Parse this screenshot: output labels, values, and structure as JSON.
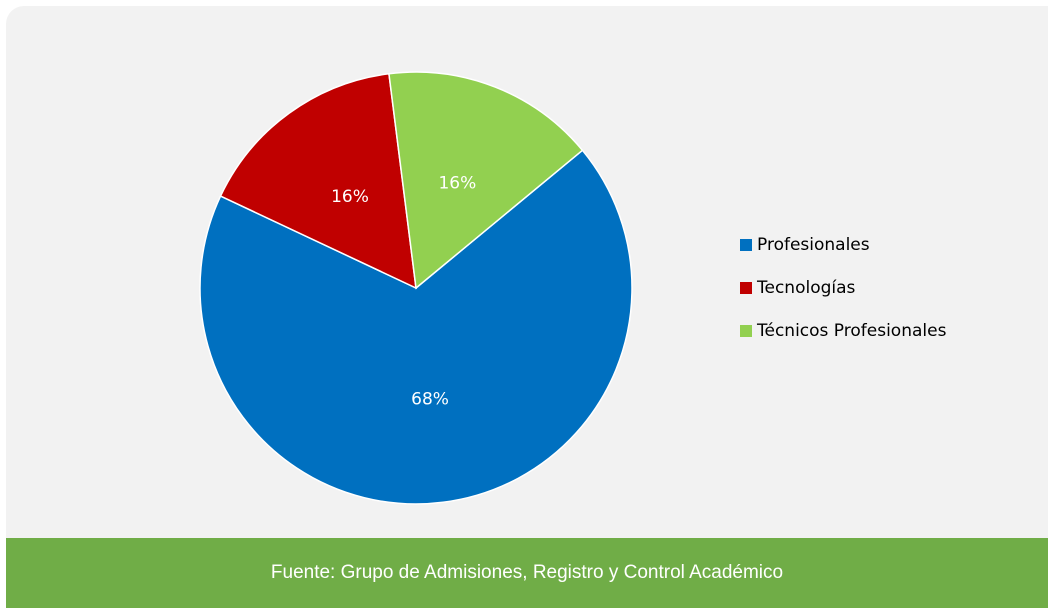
{
  "chart_data": {
    "type": "pie",
    "categories": [
      "Profesionales",
      "Tecnologías",
      "Técnicos Profesionales"
    ],
    "values": [
      68,
      16,
      16
    ],
    "value_labels": [
      "68%",
      "16%",
      "16%"
    ],
    "colors": [
      "#0070c0",
      "#c00000",
      "#92d050"
    ],
    "legend": "right"
  },
  "source": "Fuente: Grupo de Admisiones, Registro y Control Académico"
}
